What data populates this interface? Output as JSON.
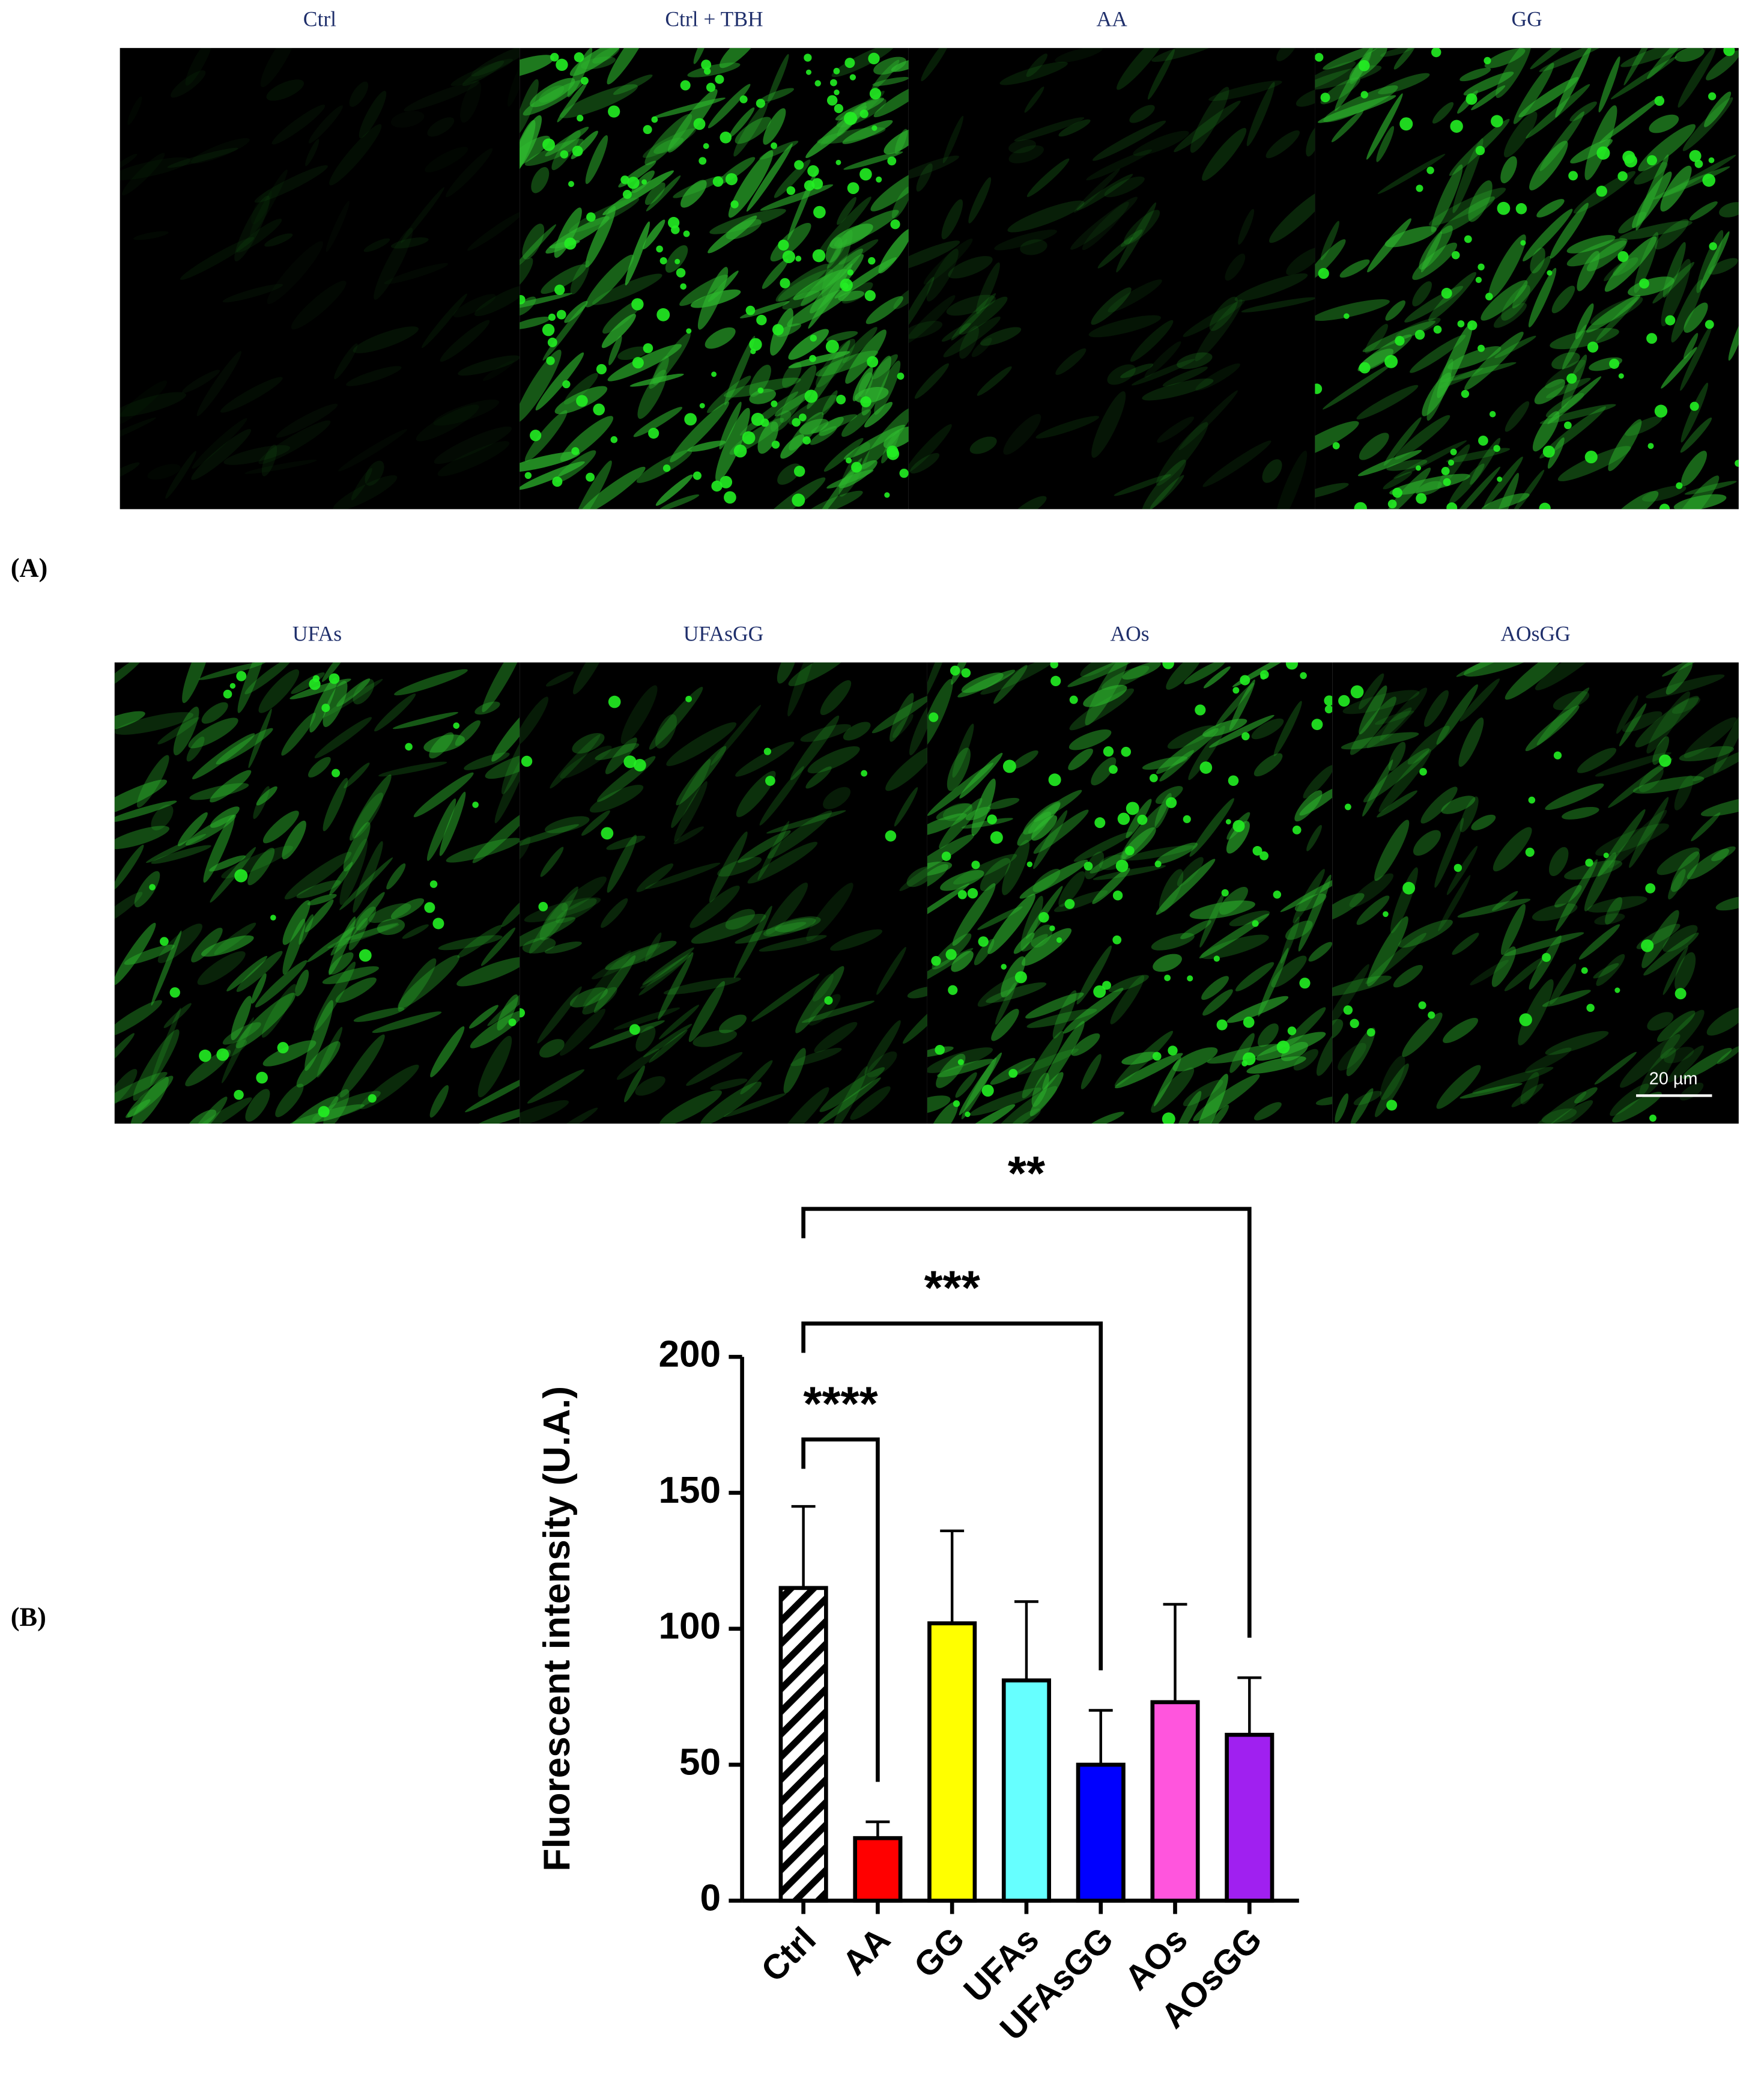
{
  "panel_a": {
    "label": "(A)",
    "titles": [
      "Ctrl",
      "Ctrl + TBH",
      "AA",
      "GG",
      "UFAs",
      "UFAsGG",
      "AOs",
      "AOsGG"
    ],
    "scale_bar": "20 µm"
  },
  "panel_b": {
    "label": "(B)"
  },
  "chart_data": {
    "type": "bar",
    "y_label": "Fluorescent intensity (U.A.)",
    "categories": [
      "Ctrl",
      "AA",
      "GG",
      "UFAs",
      "UFAsGG",
      "AOs",
      "AOsGG"
    ],
    "values": [
      115,
      23,
      102,
      81,
      50,
      73,
      61
    ],
    "errors": [
      30,
      6,
      34,
      29,
      20,
      36,
      21
    ],
    "colors": [
      "#ffffff",
      "#ff0000",
      "#ffff00",
      "#66ffff",
      "#0000ff",
      "#ff55dd",
      "#a020f0"
    ],
    "hatch": "Ctrl",
    "ylim": [
      0,
      200
    ],
    "yticks": [
      0,
      50,
      100,
      150,
      200
    ],
    "significance": [
      {
        "from": "Ctrl",
        "to": "AA",
        "label": "****"
      },
      {
        "from": "Ctrl",
        "to": "UFAsGG",
        "label": "***"
      },
      {
        "from": "Ctrl",
        "to": "AOsGG",
        "label": "**"
      }
    ]
  }
}
